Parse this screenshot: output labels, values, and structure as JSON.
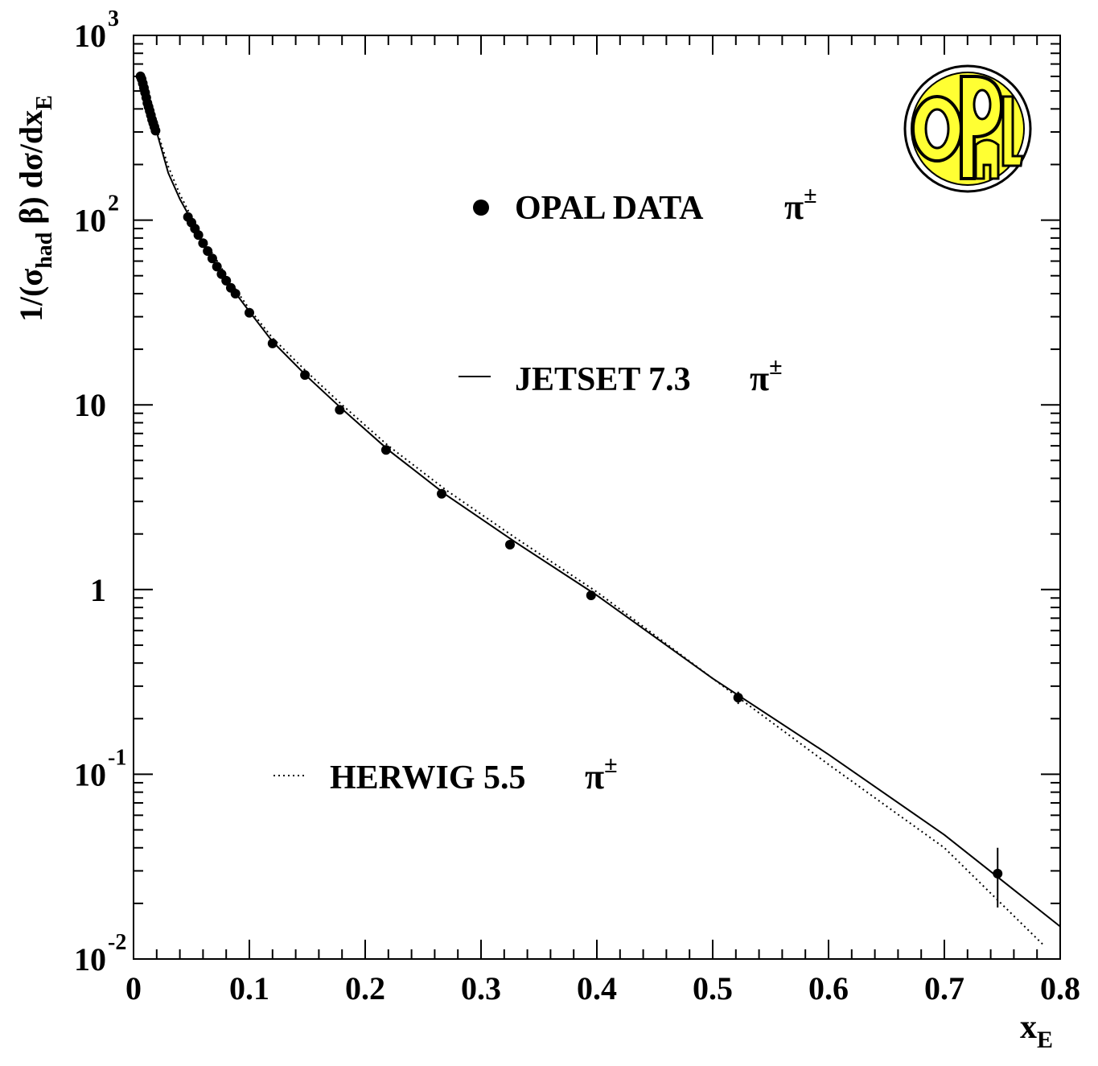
{
  "chart_data": {
    "type": "scatter",
    "title": "",
    "xlabel": "x",
    "xlabel_sub": "E",
    "ylabel": "1/(σ",
    "ylabel_sub": "had",
    "ylabel_rest": " β) dσ/dx",
    "ylabel_sub2": "E",
    "xlim": [
      0,
      0.8
    ],
    "ylim": [
      0.01,
      1000
    ],
    "y_scale": "log",
    "x_ticks": [
      "0",
      "0.1",
      "0.2",
      "0.3",
      "0.4",
      "0.5",
      "0.6",
      "0.7",
      "0.8"
    ],
    "y_ticks": [
      {
        "value": 0.01,
        "base": "10",
        "exp": "-2"
      },
      {
        "value": 0.1,
        "base": "10",
        "exp": "-1"
      },
      {
        "value": 1,
        "base": "1",
        "exp": ""
      },
      {
        "value": 10,
        "base": "10",
        "exp": ""
      },
      {
        "value": 100,
        "base": "10",
        "exp": "2"
      },
      {
        "value": 1000,
        "base": "10",
        "exp": "3"
      }
    ],
    "grid": false,
    "legend_position": "inside",
    "series": [
      {
        "name": "OPAL DATA",
        "symbol": "π",
        "symbol_sup": "±",
        "style": "markers",
        "x": [
          0.006,
          0.007,
          0.008,
          0.009,
          0.01,
          0.011,
          0.012,
          0.013,
          0.014,
          0.015,
          0.016,
          0.017,
          0.018,
          0.019,
          0.047,
          0.05,
          0.053,
          0.056,
          0.06,
          0.064,
          0.068,
          0.072,
          0.076,
          0.08,
          0.084,
          0.088,
          0.1,
          0.12,
          0.148,
          0.178,
          0.218,
          0.266,
          0.325,
          0.395,
          0.522,
          0.746
        ],
        "y": [
          600,
          580,
          550,
          520,
          490,
          460,
          430,
          410,
          390,
          370,
          350,
          335,
          320,
          305,
          104,
          97,
          90,
          83,
          75,
          68,
          62,
          56,
          51,
          47,
          43,
          40,
          31.5,
          21.5,
          14.5,
          9.4,
          5.7,
          3.3,
          1.75,
          0.93,
          0.26,
          0.029
        ],
        "yerr_low": [
          0,
          0,
          0,
          0,
          0,
          0,
          0,
          0,
          0,
          0,
          0,
          0,
          0,
          0,
          0,
          0,
          0,
          0,
          0,
          0,
          0,
          0,
          0,
          0,
          0,
          0,
          0,
          0,
          0,
          0,
          0,
          0,
          0,
          0,
          0.02,
          0.01
        ],
        "yerr_high": [
          0,
          0,
          0,
          0,
          0,
          0,
          0,
          0,
          0,
          0,
          0,
          0,
          0,
          0,
          0,
          0,
          0,
          0,
          0,
          0,
          0,
          0,
          0,
          0,
          0,
          0,
          0,
          0,
          0,
          0,
          0,
          0,
          0,
          0,
          0.02,
          0.011
        ]
      },
      {
        "name": "JETSET 7.3",
        "symbol": "π",
        "symbol_sup": "±",
        "style": "solid",
        "x": [
          0.005,
          0.01,
          0.02,
          0.03,
          0.04,
          0.05,
          0.06,
          0.08,
          0.1,
          0.12,
          0.15,
          0.18,
          0.22,
          0.27,
          0.33,
          0.4,
          0.5,
          0.6,
          0.7,
          0.8
        ],
        "y": [
          620,
          480,
          300,
          180,
          130,
          100,
          75,
          47,
          32,
          22,
          14.2,
          9.5,
          5.7,
          3.25,
          1.8,
          0.93,
          0.33,
          0.128,
          0.047,
          0.015
        ]
      },
      {
        "name": "HERWIG 5.5",
        "symbol": "π",
        "symbol_sup": "±",
        "style": "dotted",
        "x": [
          0.005,
          0.01,
          0.02,
          0.03,
          0.04,
          0.05,
          0.06,
          0.08,
          0.1,
          0.12,
          0.15,
          0.18,
          0.22,
          0.27,
          0.33,
          0.4,
          0.5,
          0.6,
          0.7,
          0.785
        ],
        "y": [
          620,
          490,
          310,
          195,
          138,
          104,
          80,
          50,
          33,
          23,
          15,
          10,
          6.0,
          3.45,
          1.9,
          0.97,
          0.33,
          0.113,
          0.04,
          0.012
        ]
      }
    ]
  },
  "logo": {
    "name": "OPAL"
  }
}
